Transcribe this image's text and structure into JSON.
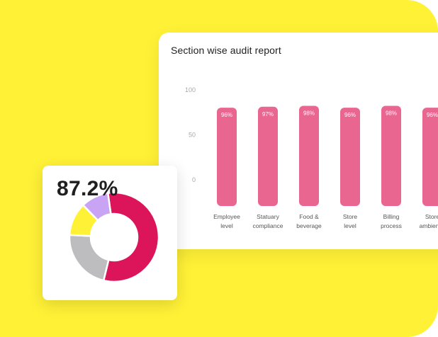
{
  "report": {
    "title": "Section wise audit report"
  },
  "chart_data": {
    "type": "bar",
    "title": "Section wise audit report",
    "categories": [
      "Employee level",
      "Statuary compliance",
      "Food & beverage",
      "Store level",
      "Billing process",
      "Store ambience"
    ],
    "category_lines": [
      [
        "Employee",
        "level"
      ],
      [
        "Statuary",
        "compliance"
      ],
      [
        "Food &",
        "beverage"
      ],
      [
        "Store",
        "level"
      ],
      [
        "Billing",
        "process"
      ],
      [
        "Store",
        "ambience"
      ]
    ],
    "values": [
      96,
      97,
      98,
      96,
      98,
      96
    ],
    "value_labels": [
      "96%",
      "97%",
      "98%",
      "96%",
      "98%",
      "96%"
    ],
    "y_ticks": [
      "100",
      "50",
      "0"
    ],
    "ylim": [
      0,
      100
    ],
    "bar_color": "#E86690",
    "grid": false
  },
  "donut": {
    "value_label": "87.2%",
    "segments": [
      {
        "value": 0.56,
        "color": "#DC1459"
      },
      {
        "value": 0.22,
        "color": "#BDBDBF"
      },
      {
        "value": 0.12,
        "color": "#FFF136"
      },
      {
        "value": 0.1,
        "color": "#C9A4F5"
      }
    ]
  },
  "colors": {
    "background": "#FFF136",
    "card": "#ffffff",
    "bar": "#E86690"
  }
}
